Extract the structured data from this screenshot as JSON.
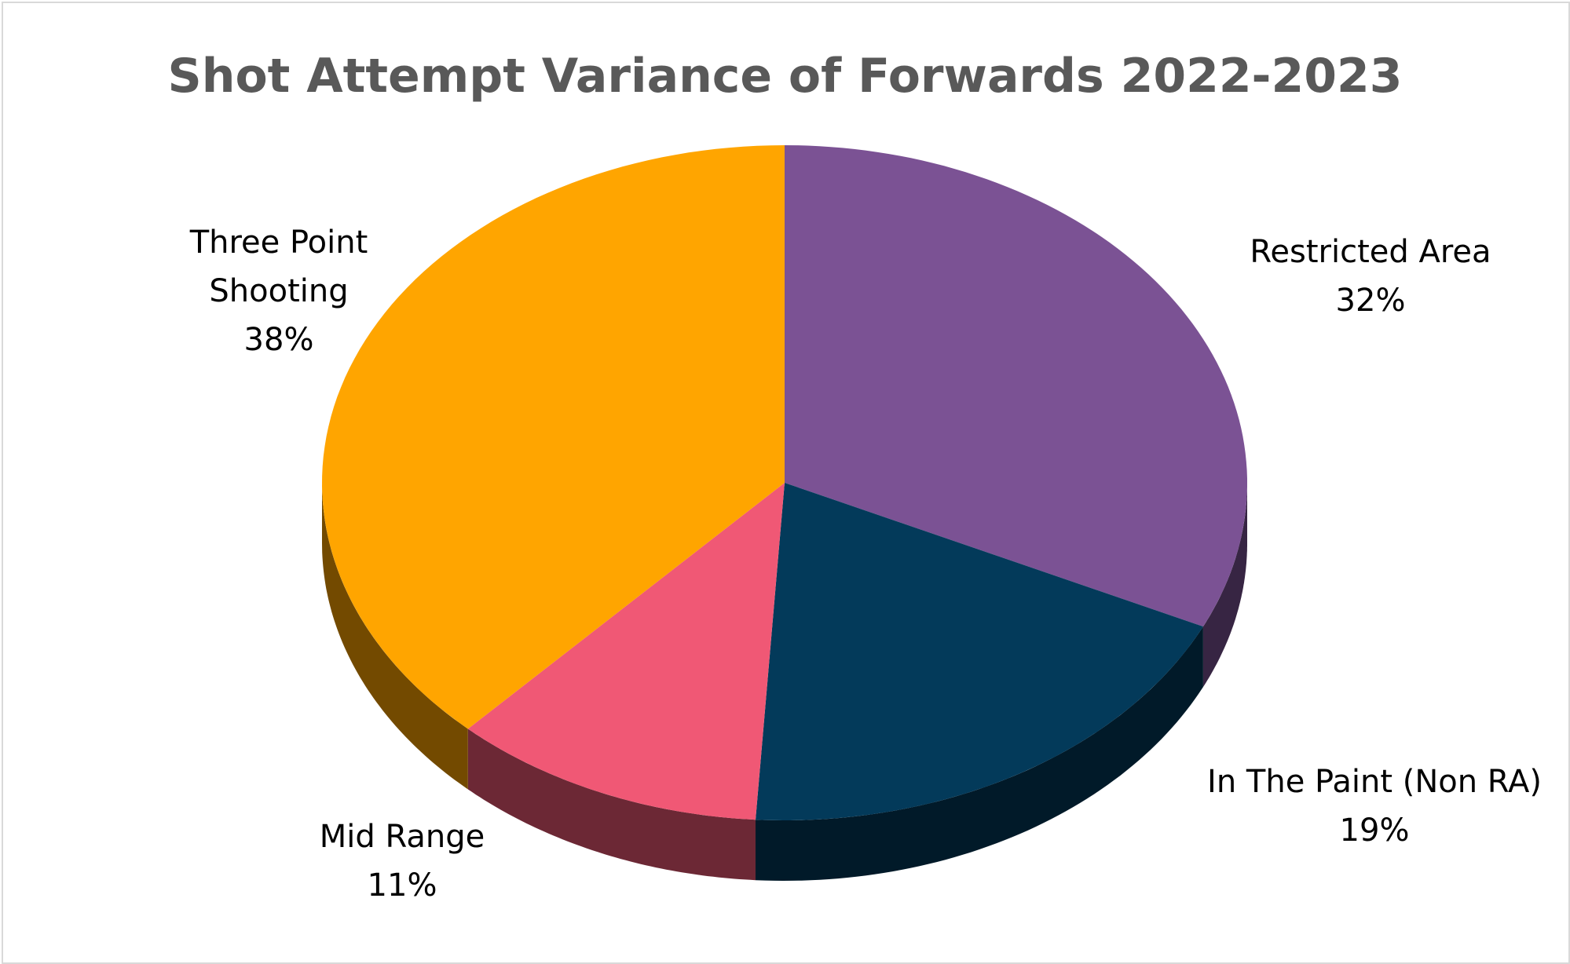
{
  "chart_data": {
    "type": "pie",
    "title": "Shot Attempt Variance of Forwards 2022-2023",
    "categories": [
      "Restricted Area",
      "In The Paint (Non RA)",
      "Mid Range",
      "Three Point Shooting"
    ],
    "values": [
      32,
      19,
      11,
      38
    ],
    "value_labels": [
      "32%",
      "19%",
      "11%",
      "38%"
    ],
    "colors": [
      "#7b5294",
      "#033a5a",
      "#f05875",
      "#ffa500"
    ]
  }
}
